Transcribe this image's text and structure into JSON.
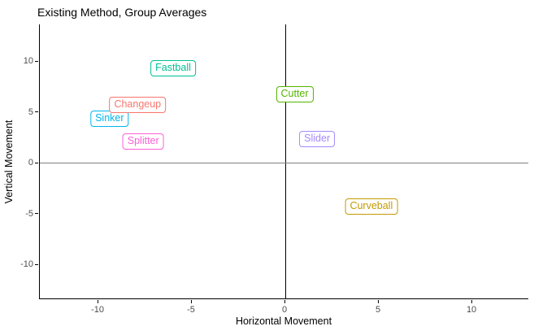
{
  "chart_data": {
    "type": "scatter",
    "title": "Existing Method, Group Averages",
    "xlabel": "Horizontal Movement",
    "ylabel": "Vertical Movement",
    "xlim": [
      -13.13,
      13.04
    ],
    "ylim": [
      -13.44,
      13.6
    ],
    "x_ticks": [
      "-10",
      "-5",
      "0",
      "5",
      "10"
    ],
    "x_tick_values": [
      -10,
      -5,
      0,
      5,
      10
    ],
    "y_ticks": [
      "-10",
      "-5",
      "0",
      "5",
      "10"
    ],
    "y_tick_values": [
      -10,
      -5,
      0,
      5,
      10
    ],
    "grid": false,
    "legend": "none",
    "reference_lines": {
      "vertical_x": 0,
      "horizontal_y": 0
    },
    "point_style": "labeled-rounded-box",
    "points": [
      {
        "label": "Fastball",
        "x": -6.0,
        "y": 9.3,
        "color": "#00C094"
      },
      {
        "label": "Sinker",
        "x": -9.4,
        "y": 4.3,
        "color": "#00B6EB"
      },
      {
        "label": "Changeup",
        "x": -7.9,
        "y": 5.7,
        "color": "#F8766D"
      },
      {
        "label": "Splitter",
        "x": -7.6,
        "y": 2.1,
        "color": "#FB61D7"
      },
      {
        "label": "Cutter",
        "x": 0.5,
        "y": 6.7,
        "color": "#53B400"
      },
      {
        "label": "Slider",
        "x": 1.7,
        "y": 2.3,
        "color": "#A58AFF"
      },
      {
        "label": "Curveball",
        "x": 4.6,
        "y": -4.3,
        "color": "#C49A00"
      }
    ],
    "axis_colors": {
      "axis_line": "#000000",
      "tick_text": "#4d4d4d",
      "zero_vline": "#000000",
      "zero_hline": "#7f7f7f"
    }
  }
}
